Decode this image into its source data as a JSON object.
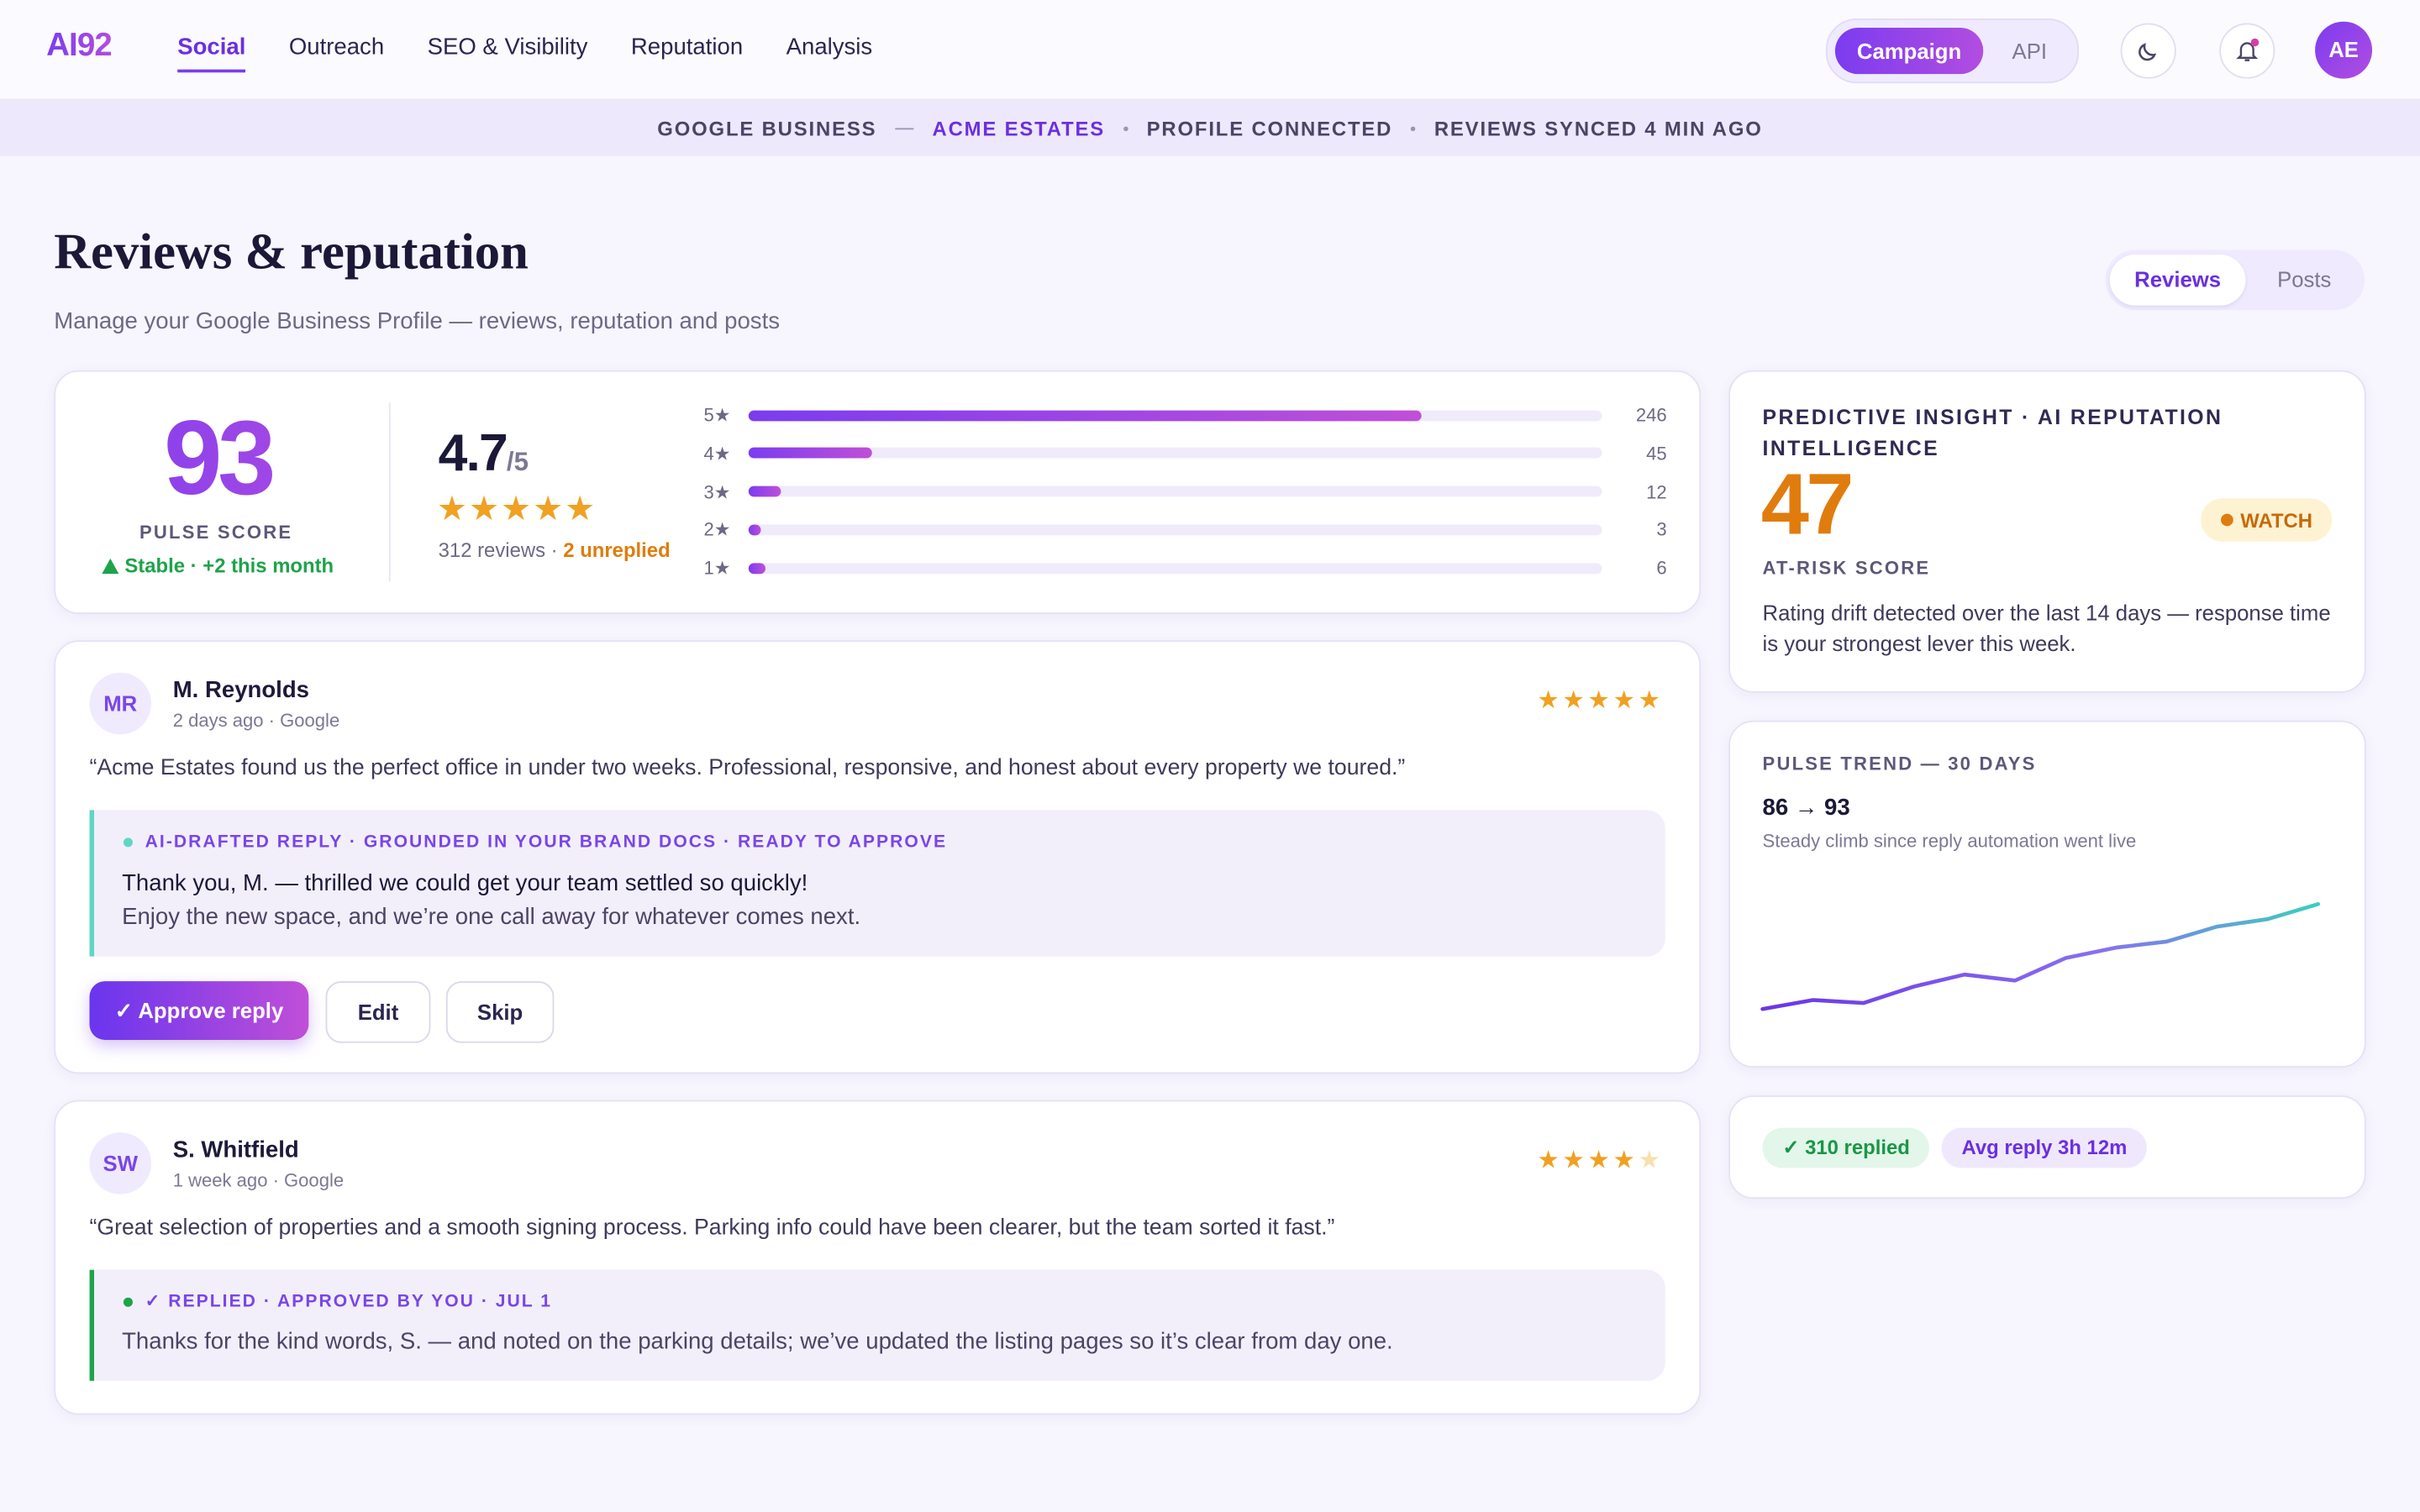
{
  "nav": {
    "logo": "AI92",
    "items": [
      "Social",
      "Outreach",
      "SEO & Visibility",
      "Reputation",
      "Analysis"
    ],
    "toggle": [
      "Campaign",
      "API"
    ],
    "avatar": "AE"
  },
  "banner": {
    "items": [
      "GOOGLE BUSINESS",
      "ACME ESTATES",
      "PROFILE CONNECTED",
      "REVIEWS SYNCED 4 MIN AGO"
    ]
  },
  "header": {
    "title": "Reviews & reputation",
    "subtitle": "Manage your Google Business Profile — reviews, reputation and posts",
    "tabs": [
      "Reviews",
      "Posts"
    ]
  },
  "summary": {
    "score": "93",
    "score_label": "PULSE SCORE",
    "score_trend": "Stable · +2 this month",
    "rating": "4.7",
    "rating_max": "/5",
    "reviews": "312 reviews ·",
    "unreplied": "2 unreplied",
    "distribution": [
      {
        "label": "5★",
        "count": 246
      },
      {
        "label": "4★",
        "count": 45
      },
      {
        "label": "3★",
        "count": 12
      },
      {
        "label": "2★",
        "count": 3
      },
      {
        "label": "1★",
        "count": 6
      }
    ]
  },
  "reviews": [
    {
      "initials": "MR",
      "name": "M. Reynolds",
      "meta": "2 days ago · Google",
      "rating": 5,
      "text": "“Acme Estates found us the perfect office in under two weeks. Professional, responsive, and honest about every property we toured.”",
      "reply": {
        "status": "AI-DRAFTED REPLY · GROUNDED IN YOUR BRAND DOCS · READY TO APPROVE",
        "lines": [
          "Thank you, M. — thrilled we could get your team settled so quickly!",
          "Enjoy the new space, and we’re one call away for whatever comes next."
        ]
      },
      "actions": [
        "✓ Approve reply",
        "Edit",
        "Skip"
      ]
    },
    {
      "initials": "SW",
      "name": "S. Whitfield",
      "meta": "1 week ago · Google",
      "rating": 4,
      "text": "“Great selection of properties and a smooth signing process. Parking info could have been clearer, but the team sorted it fast.”",
      "reply": {
        "status": "✓ REPLIED · APPROVED BY YOU · JUL 1",
        "lines": [
          "Thanks for the kind words, S. — and noted on the parking details; we’ve updated the listing pages so it’s clear from day one."
        ]
      }
    }
  ],
  "insight": {
    "title": "PREDICTIVE INSIGHT · AI REPUTATION INTELLIGENCE",
    "score": "47",
    "badge": "WATCH",
    "label": "AT-RISK SCORE",
    "text": "Rating drift detected over the last 14 days — response time is your strongest lever this week."
  },
  "trend": {
    "title": "PULSE TREND — 30 DAYS",
    "change": "86 → 93",
    "note": "Steady climb since reply automation went live",
    "values": [
      86,
      86.6,
      86.4,
      87.5,
      88.3,
      87.9,
      89.4,
      90.1,
      90.5,
      91.5,
      92,
      93
    ]
  },
  "stats": [
    "✓ 310 replied",
    "Avg reply 3h 12m"
  ]
}
